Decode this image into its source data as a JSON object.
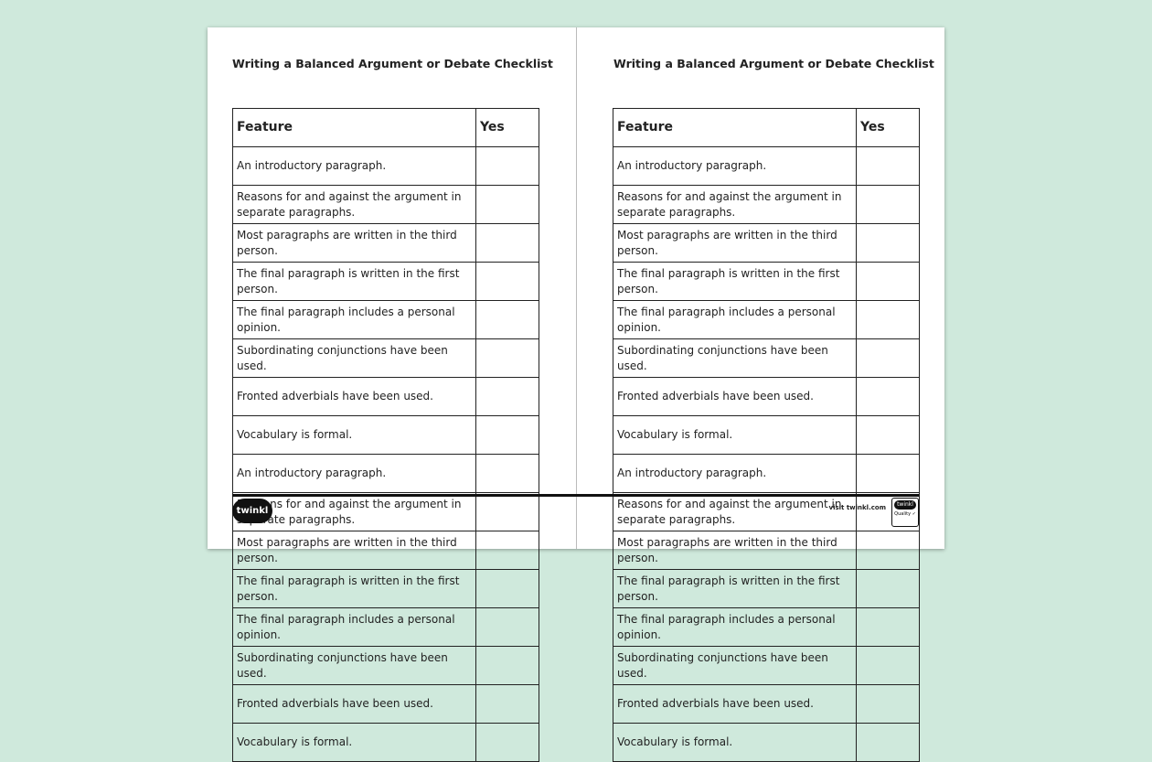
{
  "title": "Writing a Balanced Argument or Debate Checklist",
  "table": {
    "headers": [
      "Feature",
      "Yes"
    ],
    "rows": [
      "An introductory paragraph.",
      "Reasons for and against the argument in separate paragraphs.",
      "Most paragraphs are written in the third person.",
      "The final paragraph is written in the first person.",
      "The final paragraph includes a personal opinion.",
      "Subordinating conjunctions have been used.",
      "Fronted adverbials have been used.",
      "Vocabulary is formal."
    ]
  },
  "footer": {
    "logo": "twinkl",
    "visit": "visit twinkl.com",
    "badge": "twinkl Quality Standard Approved"
  }
}
